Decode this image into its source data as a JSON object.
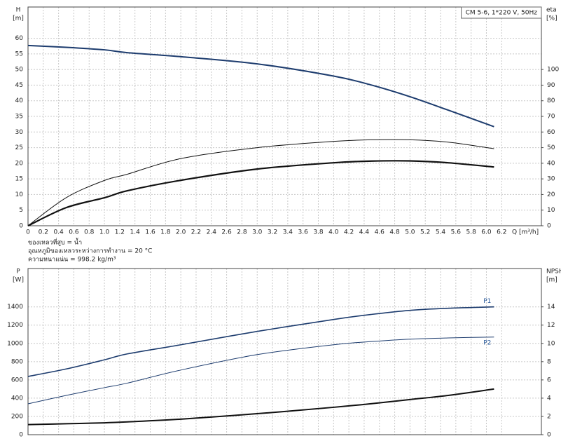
{
  "chart_data": [
    {
      "type": "line",
      "title": "CM 5-6, 1*220 V, 50Hz",
      "ylabel": [
        "H",
        "[m]"
      ],
      "y2label": [
        "eta",
        "[%]"
      ],
      "xlabel": "Q [m³/h]",
      "notes": [
        "ของเหลวที่สูบ = น้ำ",
        "อุณหภูมิของเหลวระหว่างการทำงาน = 20 °C",
        "ความหนาแน่น = 998.2 kg/m³"
      ],
      "show_xtick_labels": true,
      "grid": true,
      "x": [
        0,
        0.5,
        1,
        1.3,
        2,
        3,
        4,
        4.5,
        5,
        5.5,
        6.1
      ],
      "xlim": [
        0,
        6.72
      ],
      "xticks": [
        0,
        0.2,
        0.4,
        0.6,
        0.8,
        {
          "value": 1,
          "label": "1.0"
        },
        1.2,
        1.4,
        1.6,
        1.8,
        {
          "value": 2,
          "label": "2.0"
        },
        2.2,
        2.4,
        2.6,
        2.8,
        {
          "value": 3,
          "label": "3.0"
        },
        3.2,
        3.4,
        3.6,
        3.8,
        {
          "value": 4,
          "label": "4.0"
        },
        4.2,
        4.4,
        4.6,
        4.8,
        {
          "value": 5,
          "label": "5.0"
        },
        5.2,
        5.4,
        5.6,
        5.8,
        {
          "value": 6,
          "label": "6.0"
        },
        6.2
      ],
      "ylim": [
        0,
        70
      ],
      "yticks": [
        0,
        5,
        10,
        15,
        20,
        25,
        30,
        35,
        40,
        45,
        50,
        55,
        60
      ],
      "y2lim": [
        0,
        140
      ],
      "y2ticks": [
        0,
        10,
        20,
        30,
        40,
        50,
        60,
        70,
        80,
        90,
        100
      ],
      "series": [
        {
          "color": "#1d3c6e",
          "width": 2,
          "values": [
            57.7,
            57.1,
            56.3,
            55.4,
            54.1,
            51.8,
            47.9,
            45.0,
            41.3,
            37.0,
            31.7
          ]
        },
        {
          "color": "#111111",
          "width": 1,
          "axis": "y2",
          "values": [
            0,
            18,
            29,
            33,
            43,
            50,
            54,
            55,
            55,
            53.5,
            49.3
          ]
        },
        {
          "color": "#111111",
          "width": 2.2,
          "axis": "y2",
          "values": [
            0,
            11.6,
            17.9,
            22.4,
            29.1,
            36.3,
            40.3,
            41.4,
            41.5,
            40.3,
            37.6
          ]
        }
      ]
    },
    {
      "type": "line",
      "ylabel": [
        "P",
        "[W]"
      ],
      "y2label": [
        "NPSH",
        "[m]"
      ],
      "show_xtick_labels": false,
      "grid": true,
      "x": [
        0,
        0.5,
        1,
        1.3,
        2,
        3,
        4,
        4.5,
        5,
        5.5,
        6.1
      ],
      "xlim": [
        0,
        6.72
      ],
      "xticks": [
        0,
        0.2,
        0.4,
        0.6,
        0.8,
        1,
        1.2,
        1.4,
        1.6,
        1.8,
        2,
        2.2,
        2.4,
        2.6,
        2.8,
        3,
        3.2,
        3.4,
        3.6,
        3.8,
        4,
        4.2,
        4.4,
        4.6,
        4.8,
        5,
        5.2,
        5.4,
        5.6,
        5.8,
        6,
        6.2
      ],
      "ylim": [
        0,
        1820
      ],
      "yticks": [
        0,
        200,
        400,
        600,
        800,
        1000,
        1200,
        1400
      ],
      "y2lim": [
        0,
        18.2
      ],
      "y2ticks": [
        0,
        2,
        4,
        6,
        8,
        10,
        12,
        14
      ],
      "series": [
        {
          "name": "P1",
          "color": "#1d3c6e",
          "width": 1.6,
          "values": [
            638,
            720,
            820,
            885,
            985,
            1131,
            1262,
            1318,
            1362,
            1385,
            1400
          ]
        },
        {
          "name": "P2",
          "color": "#1d3c6e",
          "width": 1,
          "values": [
            338,
            430,
            515,
            565,
            708,
            877,
            985,
            1020,
            1046,
            1060,
            1069
          ]
        },
        {
          "color": "#111111",
          "width": 2,
          "axis": "y2",
          "values": [
            1.1,
            1.2,
            1.3,
            1.4,
            1.7,
            2.3,
            3.0,
            3.4,
            3.85,
            4.3,
            5.0
          ]
        }
      ]
    }
  ]
}
